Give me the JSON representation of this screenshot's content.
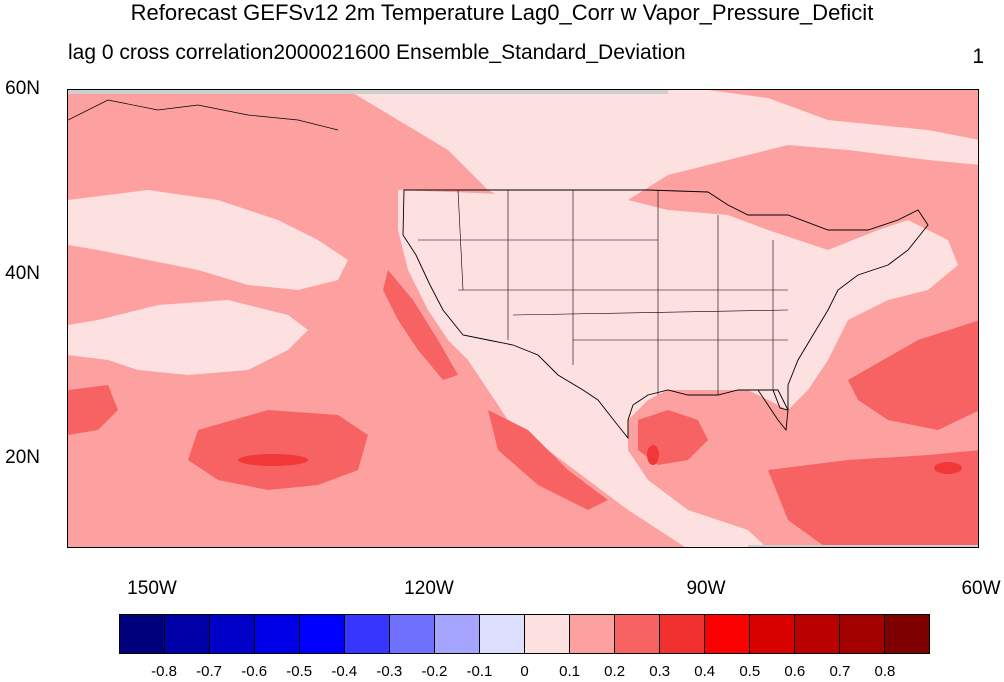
{
  "header": {
    "title": "Reforecast GEFSv12 2m Temperature Lag0_Corr w Vapor_Pressure_Deficit",
    "subtitle_left": "lag 0 cross correlation2000021600 Ensemble_Standard_Deviation",
    "subtitle_right": "1"
  },
  "map": {
    "lat_labels": [
      "60N",
      "40N",
      "20N"
    ],
    "lon_labels": [
      "150W",
      "120W",
      "90W",
      "60W"
    ],
    "shade_colors": {
      "light": "#fde0e0",
      "medium": "#fca0a0",
      "strong": "#f76363",
      "deep": "#f13737"
    }
  },
  "colorbar": {
    "colors": [
      "#00007c",
      "#0000a8",
      "#0000c8",
      "#0000e8",
      "#0000ff",
      "#3636ff",
      "#7070ff",
      "#a5a5ff",
      "#dedeff",
      "#fde0e0",
      "#fca0a0",
      "#f76363",
      "#f13030",
      "#fb0000",
      "#d90000",
      "#bb0000",
      "#a30000",
      "#7e0000"
    ],
    "labels": [
      "-0.8",
      "-0.7",
      "-0.6",
      "-0.5",
      "-0.4",
      "-0.3",
      "-0.2",
      "-0.1",
      "0",
      "0.1",
      "0.2",
      "0.3",
      "0.4",
      "0.5",
      "0.6",
      "0.7",
      "0.8"
    ]
  }
}
